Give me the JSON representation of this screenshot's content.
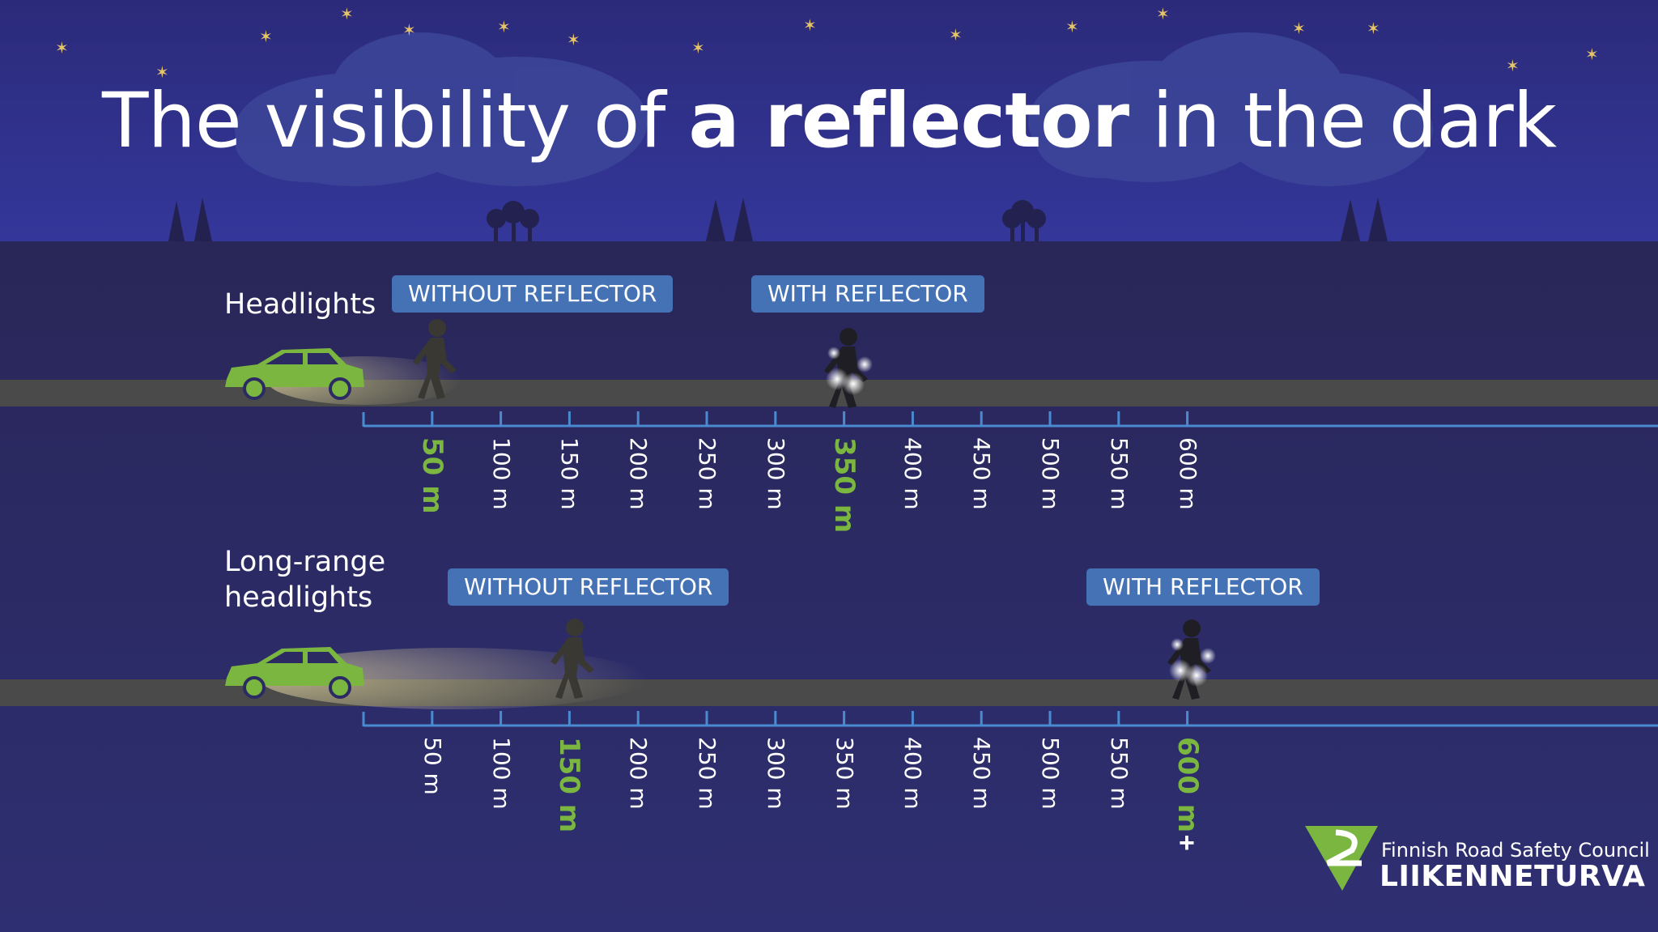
{
  "title": {
    "part1": "The visibility of ",
    "bold": "a reflector",
    "part2": " in the dark"
  },
  "rows": [
    {
      "label": "Headlights",
      "without_tag": "WITHOUT REFLECTOR",
      "with_tag": "WITH REFLECTOR",
      "without_distance_m": 50,
      "with_distance_m": 350
    },
    {
      "label_line1": "Long-range",
      "label_line2": "headlights",
      "without_tag": "WITHOUT REFLECTOR",
      "with_tag": "WITH REFLECTOR",
      "without_distance_m": 150,
      "with_distance_m": 600,
      "with_suffix": "+"
    }
  ],
  "scale_labels": [
    "50 m",
    "100 m",
    "150 m",
    "200 m",
    "250 m",
    "300 m",
    "350 m",
    "400 m",
    "450 m",
    "500 m",
    "550 m",
    "600 m"
  ],
  "logo": {
    "line1": "Finnish Road Safety Council",
    "line2": "LIIKENNETURVA"
  },
  "colors": {
    "sky": "#2b2e7a",
    "ground": "#2a2860",
    "road": "#4a4a4a",
    "axis": "#4a8ad0",
    "accent": "#7ab640",
    "tag": "#4472b5"
  }
}
